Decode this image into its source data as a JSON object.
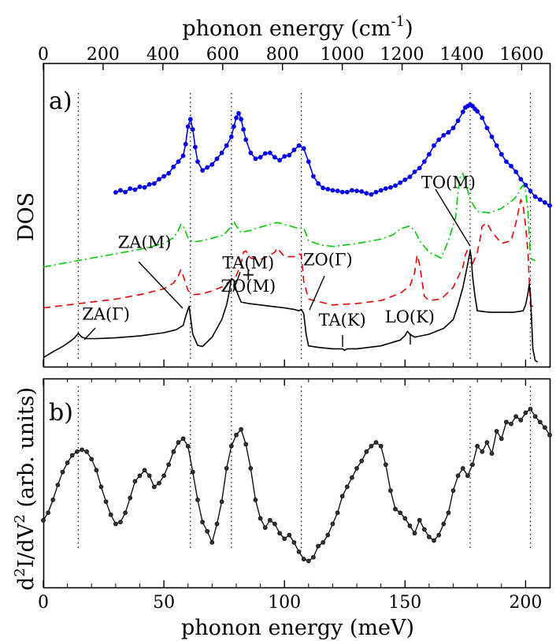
{
  "chart_data": [
    {
      "panel_label": "a)",
      "type": "line",
      "title": "",
      "xlabel_top": "phonon energy (cm",
      "xlabel_top_superscript": "-1",
      "xlabel_top_suffix": ")",
      "top_ticks": [
        "0",
        "200",
        "400",
        "600",
        "800",
        "1000",
        "1200",
        "1400",
        "1600"
      ],
      "top_tick_values": [
        0,
        200,
        400,
        600,
        800,
        1000,
        1200,
        1400,
        1600
      ],
      "ylabel": "DOS",
      "xlim": [
        0,
        210
      ],
      "ylim": [
        0,
        1
      ],
      "reference_lines_meV": [
        14.5,
        61,
        78,
        107,
        177,
        202
      ],
      "series": [
        {
          "name": "blue (measured, markers)",
          "color": "#0000ee",
          "style": "solid-markers",
          "x": [
            30,
            32,
            34,
            36,
            38,
            40,
            42,
            44,
            46,
            48,
            50,
            52,
            54,
            56,
            58,
            59,
            60,
            61,
            62,
            63,
            64,
            66,
            68,
            70,
            72,
            74,
            76,
            78,
            79,
            80,
            81,
            82,
            83,
            84,
            86,
            88,
            90,
            92,
            94,
            96,
            98,
            100,
            102,
            104,
            106,
            108,
            110,
            112,
            114,
            116,
            118,
            120,
            122,
            124,
            126,
            128,
            130,
            132,
            134,
            136,
            138,
            140,
            142,
            144,
            146,
            148,
            150,
            152,
            154,
            156,
            158,
            160,
            162,
            164,
            166,
            168,
            170,
            172,
            174,
            175,
            176,
            177,
            178,
            179,
            180,
            182,
            184,
            186,
            188,
            190,
            192,
            194,
            196,
            198,
            200,
            202,
            204,
            206,
            208,
            210
          ],
          "y": [
            0.585,
            0.592,
            0.586,
            0.598,
            0.594,
            0.604,
            0.602,
            0.612,
            0.615,
            0.63,
            0.64,
            0.65,
            0.672,
            0.69,
            0.71,
            0.75,
            0.81,
            0.835,
            0.8,
            0.74,
            0.69,
            0.66,
            0.67,
            0.68,
            0.7,
            0.72,
            0.745,
            0.775,
            0.81,
            0.84,
            0.855,
            0.835,
            0.8,
            0.765,
            0.72,
            0.7,
            0.705,
            0.718,
            0.72,
            0.705,
            0.695,
            0.708,
            0.712,
            0.73,
            0.745,
            0.735,
            0.69,
            0.64,
            0.615,
            0.6,
            0.596,
            0.592,
            0.59,
            0.586,
            0.586,
            0.592,
            0.59,
            0.588,
            0.582,
            0.578,
            0.586,
            0.592,
            0.598,
            0.602,
            0.608,
            0.618,
            0.628,
            0.638,
            0.655,
            0.668,
            0.69,
            0.715,
            0.745,
            0.765,
            0.78,
            0.79,
            0.805,
            0.83,
            0.86,
            0.875,
            0.88,
            0.885,
            0.88,
            0.87,
            0.862,
            0.84,
            0.805,
            0.775,
            0.745,
            0.715,
            0.69,
            0.675,
            0.655,
            0.63,
            0.61,
            0.59,
            0.57,
            0.56,
            0.55,
            0.54
          ]
        },
        {
          "name": "green (dash-dot)",
          "color": "#00cc00",
          "style": "dashdot",
          "x": [
            0,
            10,
            20,
            30,
            40,
            50,
            54,
            56,
            57,
            58,
            60,
            62,
            66,
            70,
            75,
            78,
            79,
            80,
            82,
            86,
            90,
            94,
            97,
            100,
            104,
            106,
            108,
            110,
            115,
            120,
            130,
            140,
            145,
            148,
            152,
            154,
            156,
            160,
            165,
            168,
            171,
            172,
            173,
            174,
            175,
            177,
            180,
            185,
            190,
            195,
            197,
            198,
            199,
            200,
            201,
            202,
            204
          ],
          "y": [
            0.33,
            0.345,
            0.36,
            0.375,
            0.39,
            0.41,
            0.43,
            0.455,
            0.475,
            0.47,
            0.43,
            0.415,
            0.42,
            0.428,
            0.44,
            0.47,
            0.486,
            0.47,
            0.448,
            0.455,
            0.466,
            0.475,
            0.482,
            0.475,
            0.466,
            0.462,
            0.463,
            0.42,
            0.405,
            0.4,
            0.41,
            0.425,
            0.44,
            0.46,
            0.47,
            0.455,
            0.42,
            0.38,
            0.36,
            0.42,
            0.5,
            0.59,
            0.64,
            0.65,
            0.62,
            0.56,
            0.52,
            0.515,
            0.53,
            0.56,
            0.58,
            0.6,
            0.61,
            0.59,
            0.52,
            0.36,
            0.35
          ]
        },
        {
          "name": "red (dashed)",
          "color": "#ee0000",
          "style": "dashed",
          "x": [
            0,
            10,
            20,
            30,
            40,
            50,
            54,
            56,
            57,
            58,
            60,
            62,
            66,
            70,
            75,
            80,
            82,
            83,
            84,
            86,
            90,
            94,
            96,
            97,
            98,
            100,
            104,
            106,
            107,
            108,
            110,
            115,
            120,
            130,
            140,
            148,
            152,
            154,
            155,
            156,
            158,
            160,
            165,
            170,
            174,
            175,
            176,
            177,
            178,
            180,
            181,
            182,
            184,
            186,
            190,
            194,
            196,
            197,
            198,
            199,
            200,
            201,
            202,
            204
          ],
          "y": [
            0.19,
            0.2,
            0.21,
            0.22,
            0.235,
            0.255,
            0.275,
            0.3,
            0.32,
            0.3,
            0.25,
            0.235,
            0.238,
            0.248,
            0.265,
            0.3,
            0.34,
            0.38,
            0.385,
            0.36,
            0.355,
            0.37,
            0.38,
            0.395,
            0.385,
            0.365,
            0.365,
            0.375,
            0.37,
            0.28,
            0.22,
            0.21,
            0.2,
            0.205,
            0.215,
            0.24,
            0.265,
            0.31,
            0.37,
            0.34,
            0.23,
            0.215,
            0.22,
            0.26,
            0.33,
            0.37,
            0.39,
            0.38,
            0.34,
            0.38,
            0.42,
            0.47,
            0.48,
            0.45,
            0.41,
            0.42,
            0.48,
            0.52,
            0.56,
            0.54,
            0.47,
            0.38,
            0.2,
            0.19
          ]
        },
        {
          "name": "black (solid)",
          "color": "#000000",
          "style": "solid",
          "x": [
            0,
            4,
            8,
            11,
            13,
            14,
            14.5,
            15,
            16,
            18,
            22,
            30,
            40,
            50,
            55,
            58,
            59,
            60,
            60.5,
            61,
            62,
            64,
            66,
            70,
            74,
            76,
            77,
            78,
            79,
            80,
            82,
            85,
            90,
            95,
            100,
            104,
            106,
            107,
            108,
            109,
            110,
            114,
            120,
            124,
            125,
            126,
            130,
            140,
            148,
            150,
            151,
            152,
            154,
            160,
            166,
            170,
            172,
            174,
            176,
            177,
            177.5,
            178,
            179,
            180,
            185,
            190,
            195,
            199,
            200,
            201,
            201.5,
            202,
            202.5,
            203,
            204,
            205
          ],
          "y": [
            0.02,
            0.04,
            0.058,
            0.075,
            0.088,
            0.098,
            0.103,
            0.098,
            0.09,
            0.085,
            0.085,
            0.088,
            0.094,
            0.105,
            0.115,
            0.13,
            0.16,
            0.185,
            0.195,
            0.16,
            0.1,
            0.062,
            0.058,
            0.09,
            0.15,
            0.2,
            0.24,
            0.29,
            0.285,
            0.25,
            0.21,
            0.205,
            0.2,
            0.195,
            0.19,
            0.185,
            0.18,
            0.185,
            0.17,
            0.1,
            0.06,
            0.055,
            0.05,
            0.05,
            0.045,
            0.05,
            0.05,
            0.06,
            0.08,
            0.095,
            0.11,
            0.1,
            0.09,
            0.1,
            0.12,
            0.15,
            0.2,
            0.26,
            0.34,
            0.385,
            0.36,
            0.3,
            0.23,
            0.18,
            0.175,
            0.175,
            0.175,
            0.18,
            0.2,
            0.24,
            0.27,
            0.24,
            0.15,
            0.05,
            0.01,
            0.005
          ]
        }
      ],
      "annotations": [
        {
          "text": "ZA(M)",
          "x_meV": 42,
          "y": 0.395
        },
        {
          "text": "TA(M)",
          "x_meV": 85,
          "y": 0.325
        },
        {
          "text": "+",
          "x_meV": 85,
          "y": 0.285
        },
        {
          "text": "ZO(M)",
          "x_meV": 85,
          "y": 0.245
        },
        {
          "text": "ZO(Γ)",
          "x_meV": 118,
          "y": 0.335
        },
        {
          "text": "ZA(Γ)",
          "x_meV": 26,
          "y": 0.15
        },
        {
          "text": "TA(K)",
          "x_meV": 124,
          "y": 0.13
        },
        {
          "text": "LO(K)",
          "x_meV": 152,
          "y": 0.14
        },
        {
          "text": "TO(M)",
          "x_meV": 168,
          "y": 0.6
        }
      ]
    },
    {
      "panel_label": "b)",
      "type": "line",
      "title": "",
      "xlabel": "phonon energy (meV)",
      "ylabel_parts": [
        "d",
        "2",
        "I/dV",
        "2",
        " (arb. units)"
      ],
      "bottom_ticks": [
        "0",
        "50",
        "100",
        "150",
        "200"
      ],
      "bottom_tick_values": [
        0,
        50,
        100,
        150,
        200
      ],
      "xlim": [
        0,
        210
      ],
      "ylim": [
        0,
        1
      ],
      "reference_lines_meV": [
        14.5,
        61,
        78,
        107,
        177,
        202
      ],
      "series": [
        {
          "name": "measured d2I/dV2",
          "color": "#000000",
          "style": "solid-markers",
          "x": [
            0,
            2,
            4,
            6,
            8,
            10,
            12,
            14,
            16,
            18,
            20,
            22,
            24,
            26,
            28,
            30,
            32,
            34,
            36,
            38,
            40,
            42,
            44,
            46,
            48,
            50,
            52,
            54,
            56,
            58,
            60,
            62,
            64,
            66,
            68,
            70,
            72,
            74,
            76,
            78,
            80,
            82,
            84,
            86,
            88,
            90,
            92,
            94,
            96,
            98,
            100,
            102,
            104,
            106,
            108,
            110,
            112,
            114,
            116,
            118,
            120,
            122,
            124,
            126,
            128,
            130,
            132,
            134,
            136,
            138,
            140,
            142,
            144,
            146,
            148,
            150,
            152,
            154,
            156,
            158,
            160,
            162,
            164,
            166,
            168,
            170,
            172,
            174,
            176,
            178,
            180,
            182,
            184,
            186,
            188,
            190,
            192,
            194,
            196,
            198,
            200,
            202,
            204,
            206,
            208,
            210
          ],
          "y": [
            0.32,
            0.36,
            0.43,
            0.51,
            0.58,
            0.63,
            0.67,
            0.69,
            0.7,
            0.69,
            0.65,
            0.59,
            0.5,
            0.42,
            0.35,
            0.3,
            0.31,
            0.36,
            0.44,
            0.53,
            0.56,
            0.59,
            0.56,
            0.5,
            0.52,
            0.56,
            0.62,
            0.69,
            0.74,
            0.76,
            0.72,
            0.58,
            0.43,
            0.31,
            0.26,
            0.2,
            0.3,
            0.42,
            0.6,
            0.72,
            0.78,
            0.81,
            0.73,
            0.6,
            0.43,
            0.33,
            0.28,
            0.32,
            0.3,
            0.25,
            0.22,
            0.24,
            0.2,
            0.15,
            0.11,
            0.1,
            0.12,
            0.18,
            0.2,
            0.24,
            0.3,
            0.36,
            0.45,
            0.5,
            0.55,
            0.6,
            0.64,
            0.69,
            0.72,
            0.74,
            0.72,
            0.62,
            0.48,
            0.38,
            0.36,
            0.33,
            0.29,
            0.25,
            0.32,
            0.27,
            0.23,
            0.21,
            0.24,
            0.3,
            0.36,
            0.48,
            0.56,
            0.6,
            0.56,
            0.62,
            0.72,
            0.69,
            0.74,
            0.68,
            0.8,
            0.76,
            0.85,
            0.84,
            0.88,
            0.86,
            0.9,
            0.92,
            0.88,
            0.85,
            0.82,
            0.78
          ]
        }
      ]
    }
  ]
}
